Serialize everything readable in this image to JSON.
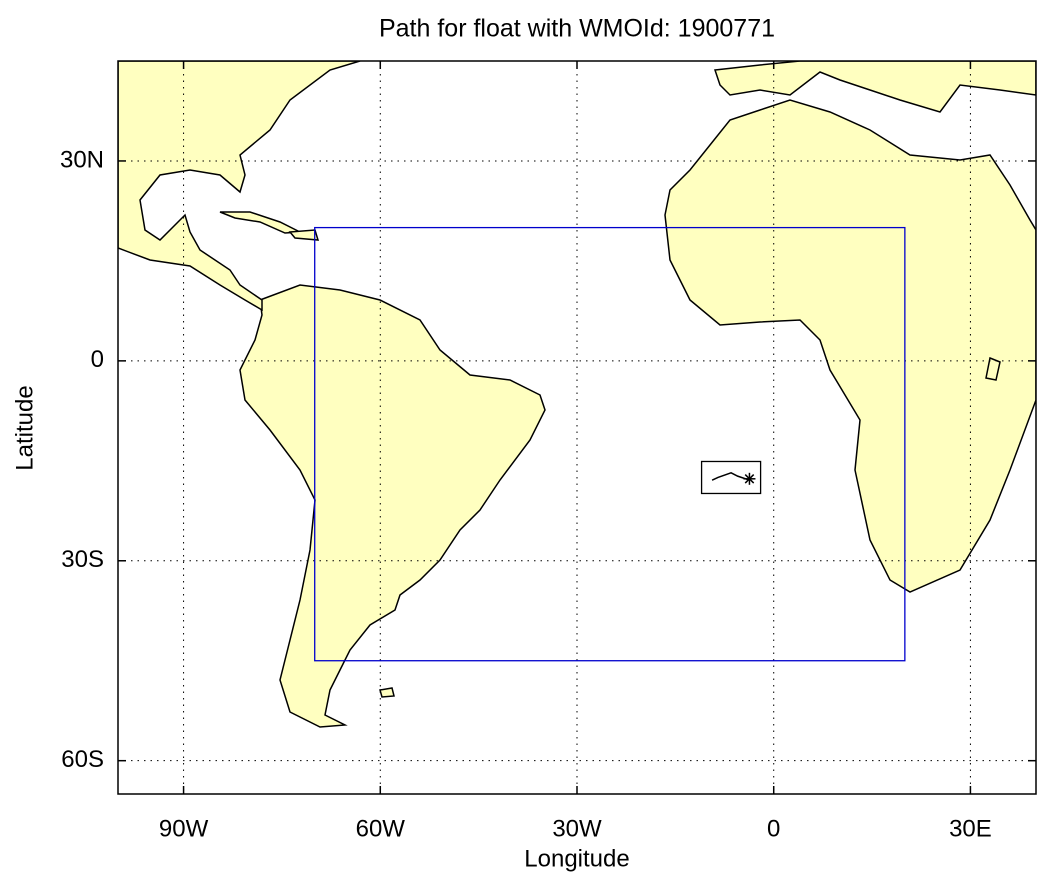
{
  "chart_data": {
    "type": "map",
    "title": "Path for float with WMOId: 1900771",
    "xlabel": "Longitude",
    "ylabel": "Latitude",
    "xlim": [
      -100,
      40
    ],
    "ylim": [
      -65,
      45
    ],
    "xticks": [
      {
        "value": -90,
        "label": "90W"
      },
      {
        "value": -60,
        "label": "60W"
      },
      {
        "value": -30,
        "label": "30W"
      },
      0,
      {
        "value": 30,
        "label": "30E"
      }
    ],
    "yticks": [
      {
        "value": -60,
        "label": "60S"
      },
      {
        "value": -30,
        "label": "30S"
      },
      0,
      {
        "value": 30,
        "label": "30N"
      }
    ],
    "grid": true,
    "land_color": "#ffffc0",
    "boxes": [
      {
        "x": [
          -70,
          20
        ],
        "values": [
          -45,
          20
        ],
        "color": "#0000cc"
      },
      {
        "x": [
          -11,
          -2
        ],
        "values": [
          -19.9,
          -15.1
        ],
        "color": "#000000"
      }
    ],
    "track": {
      "x": [
        -9.4,
        -8.5,
        -6.5,
        -5.5,
        -4.0,
        -3.7
      ],
      "values": [
        -17.9,
        -17.5,
        -16.8,
        -17.3,
        -17.8,
        -17.7
      ],
      "color": "#000000"
    }
  }
}
